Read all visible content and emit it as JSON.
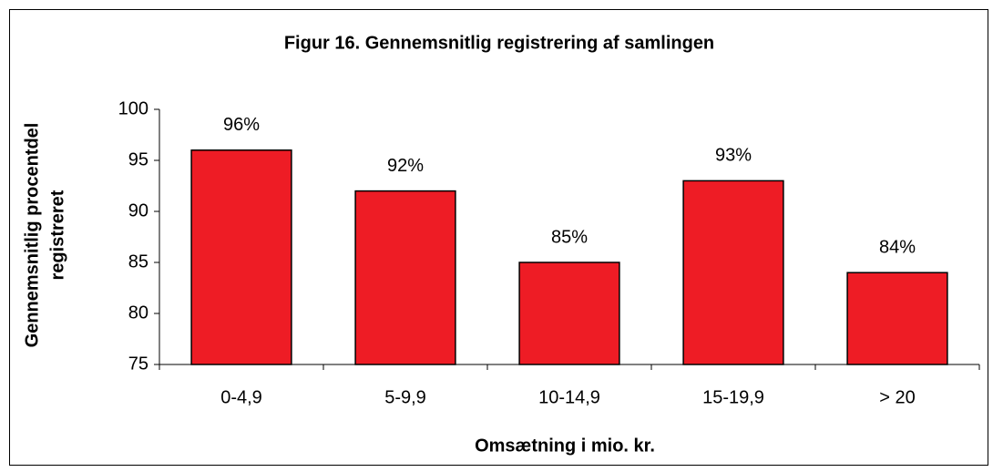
{
  "chart_data": {
    "type": "bar",
    "title": "Figur 16. Gennemsnitlig registrering af samlingen",
    "x_label": "Omsætning i mio. kr.",
    "y_label": [
      "Gennemsnitlig procentdel",
      "registreret"
    ],
    "categories": [
      "0-4,9",
      "5-9,9",
      "10-14,9",
      "15-19,9",
      "> 20"
    ],
    "values": [
      96,
      92,
      85,
      93,
      84
    ],
    "value_labels": [
      "96%",
      "92%",
      "85%",
      "93%",
      "84%"
    ],
    "color": "#ee1c25",
    "ylim": [
      75,
      100
    ],
    "yticks": [
      75,
      80,
      85,
      90,
      95,
      100
    ],
    "grid": false
  }
}
